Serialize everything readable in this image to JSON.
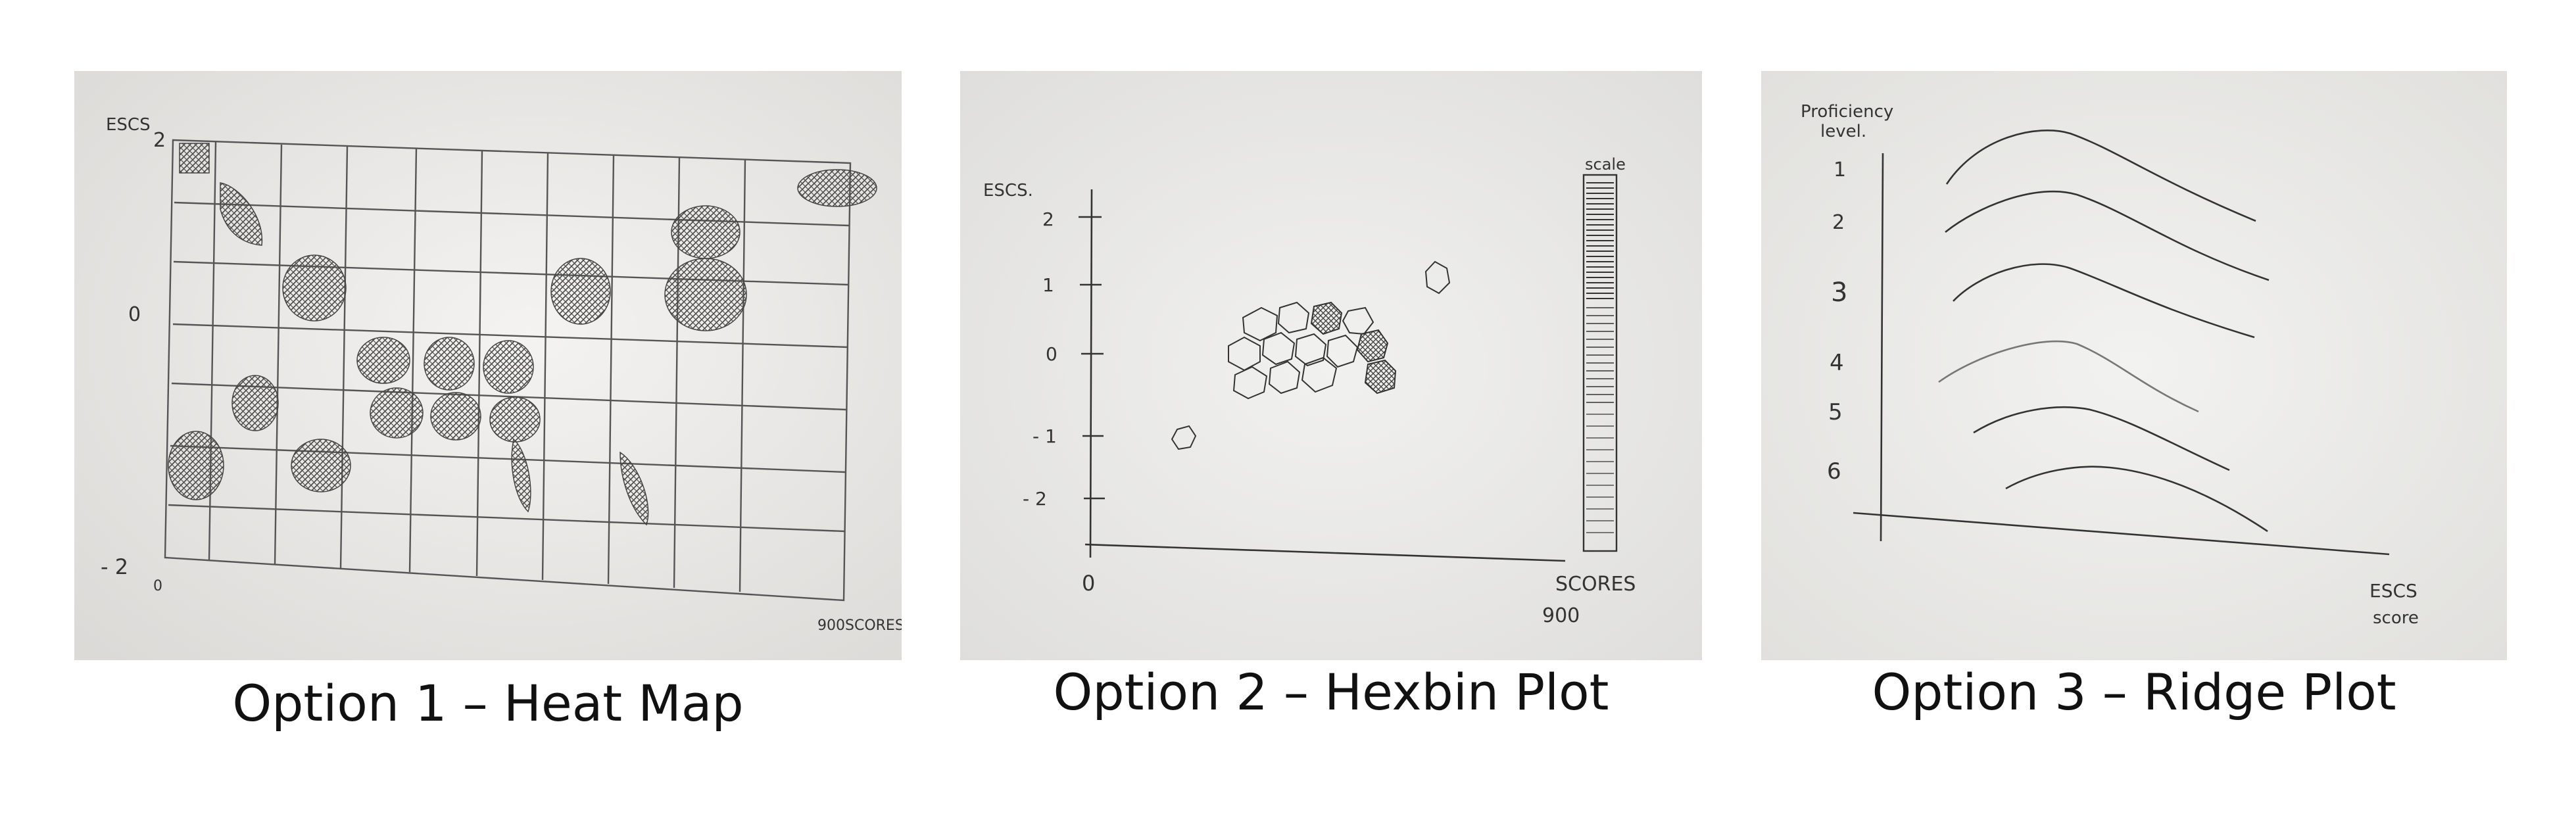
{
  "options": [
    {
      "caption": "Option 1 – Heat Map",
      "labels": {
        "y_axis": "ESCS",
        "y_top": "2",
        "y_mid": "0",
        "y_bottom": "- 2",
        "x_start": "0",
        "x_end": "900SCORES"
      }
    },
    {
      "caption": "Option 2 – Hexbin Plot",
      "labels": {
        "y_axis": "ESCS.",
        "ticks": [
          "2",
          "1",
          "0",
          "- 1",
          "- 2"
        ],
        "origin": "0",
        "x_axis": "SCORES",
        "x_max": "900",
        "scale": "scale"
      }
    },
    {
      "caption": "Option 3 – Ridge Plot",
      "labels": {
        "y_axis": [
          "Proficiency",
          "level."
        ],
        "levels": [
          "1",
          "2",
          "3",
          "4",
          "5",
          "6"
        ],
        "x_axis": [
          "ESCS",
          "score"
        ]
      }
    }
  ]
}
